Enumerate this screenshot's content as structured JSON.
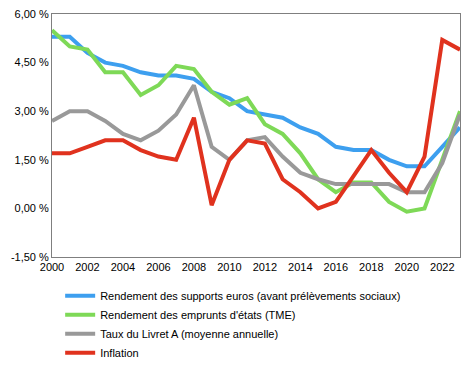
{
  "chart_data": {
    "type": "line",
    "x": [
      2000,
      2001,
      2002,
      2003,
      2004,
      2005,
      2006,
      2007,
      2008,
      2009,
      2010,
      2011,
      2012,
      2013,
      2014,
      2015,
      2016,
      2017,
      2018,
      2019,
      2020,
      2021,
      2022,
      2023
    ],
    "series": [
      {
        "name": "Rendement des supports euros (avant prélèvements sociaux)",
        "color": "#3d9fef",
        "values": [
          5.3,
          5.3,
          4.8,
          4.5,
          4.4,
          4.2,
          4.1,
          4.1,
          4.0,
          3.6,
          3.4,
          3.0,
          2.9,
          2.8,
          2.5,
          2.3,
          1.9,
          1.8,
          1.8,
          1.5,
          1.3,
          1.3,
          1.9,
          2.5
        ]
      },
      {
        "name": "Rendement des emprunts d'états (TME)",
        "color": "#7ed957",
        "values": [
          5.5,
          5.0,
          4.9,
          4.2,
          4.2,
          3.5,
          3.8,
          4.4,
          4.3,
          3.6,
          3.2,
          3.4,
          2.6,
          2.3,
          1.7,
          0.9,
          0.5,
          0.8,
          0.8,
          0.2,
          -0.1,
          0.0,
          1.5,
          3.0
        ]
      },
      {
        "name": "Taux du Livret A (moyenne annuelle)",
        "color": "#999999",
        "values": [
          2.7,
          3.0,
          3.0,
          2.7,
          2.3,
          2.1,
          2.4,
          2.9,
          3.8,
          1.9,
          1.5,
          2.1,
          2.2,
          1.6,
          1.1,
          0.9,
          0.75,
          0.75,
          0.75,
          0.75,
          0.5,
          0.5,
          1.4,
          2.9
        ]
      },
      {
        "name": "Inflation",
        "color": "#e0321e",
        "values": [
          1.7,
          1.7,
          1.9,
          2.1,
          2.1,
          1.8,
          1.6,
          1.5,
          2.8,
          0.1,
          1.5,
          2.1,
          2.0,
          0.9,
          0.5,
          0.0,
          0.2,
          1.0,
          1.8,
          1.1,
          0.5,
          1.6,
          5.2,
          4.9
        ]
      }
    ],
    "xlim": [
      2000,
      2023
    ],
    "xticks": [
      2000,
      2002,
      2004,
      2006,
      2008,
      2010,
      2012,
      2014,
      2016,
      2018,
      2020,
      2022
    ],
    "ylim": [
      -1.5,
      6
    ],
    "yticks": [
      {
        "value": -1.5,
        "label": "-1,50 %"
      },
      {
        "value": 0,
        "label": "0,00 %"
      },
      {
        "value": 1.5,
        "label": "1,50 %"
      },
      {
        "value": 3,
        "label": "3,00 %"
      },
      {
        "value": 4.5,
        "label": "4,50 %"
      },
      {
        "value": 6,
        "label": "6,00 %"
      }
    ],
    "grid": false,
    "legend": "bottom"
  }
}
